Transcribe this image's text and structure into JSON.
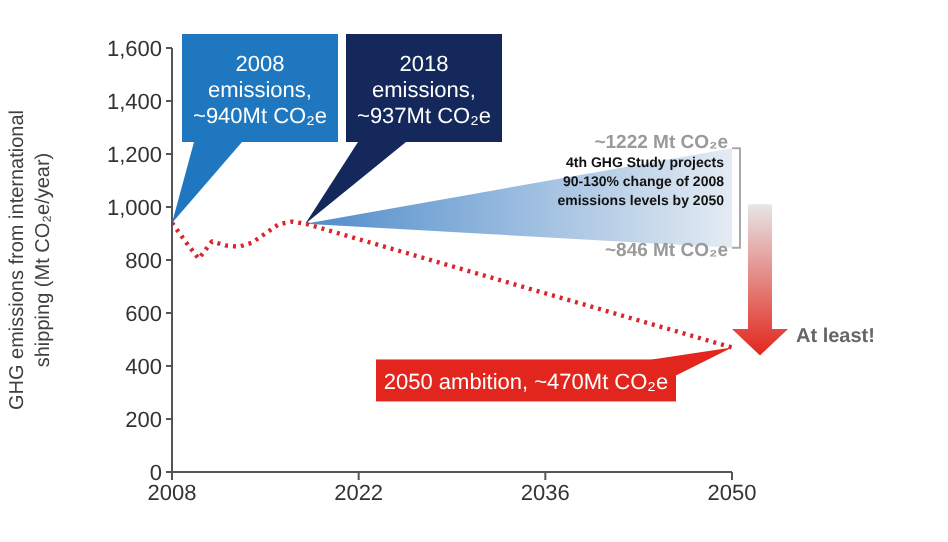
{
  "chart_data": {
    "type": "line",
    "ylabel": "GHG emissions from international shipping (Mt CO₂e/year)",
    "x": [
      2008,
      2009,
      2010,
      2011,
      2012,
      2013,
      2014,
      2015,
      2016,
      2017,
      2018,
      2050
    ],
    "series": [
      {
        "color": "#d9262e",
        "values": [
          940,
          870,
          805,
          870,
          855,
          850,
          865,
          900,
          935,
          945,
          937,
          470
        ]
      },
      {
        "type": "area",
        "color": "#4f8ccb",
        "x": [
          2018,
          2050
        ],
        "values": [
          null,
          null
        ],
        "lower": [
          937,
          846
        ],
        "upper": [
          937,
          1222
        ]
      }
    ],
    "xlim": [
      2008,
      2050
    ],
    "xticks": [
      2008,
      2022,
      2036,
      2050
    ],
    "ylim": [
      0,
      1600
    ],
    "yticks": [
      0,
      {
        "value": 200,
        "label": "200"
      },
      {
        "value": 400,
        "label": "400"
      },
      {
        "value": 600,
        "label": "600"
      },
      {
        "value": 800,
        "label": "800"
      },
      {
        "value": 1000,
        "label": "1,000"
      },
      {
        "value": 1200,
        "label": "1,200"
      },
      {
        "value": 1400,
        "label": "1,400"
      },
      {
        "value": 1600,
        "label": "1,600"
      }
    ],
    "marker": "none",
    "line_style": "dotted",
    "annotations": [
      "2008 emissions, ~940Mt CO₂e",
      "2018 emissions, ~937Mt CO₂e",
      "2050 ambition, ~470Mt CO₂e",
      "~1222 Mt CO₂e",
      "~846 Mt CO₂e",
      "4th GHG Study projects 90-130% change of 2008 emissions levels by 2050",
      "At least!"
    ]
  }
}
